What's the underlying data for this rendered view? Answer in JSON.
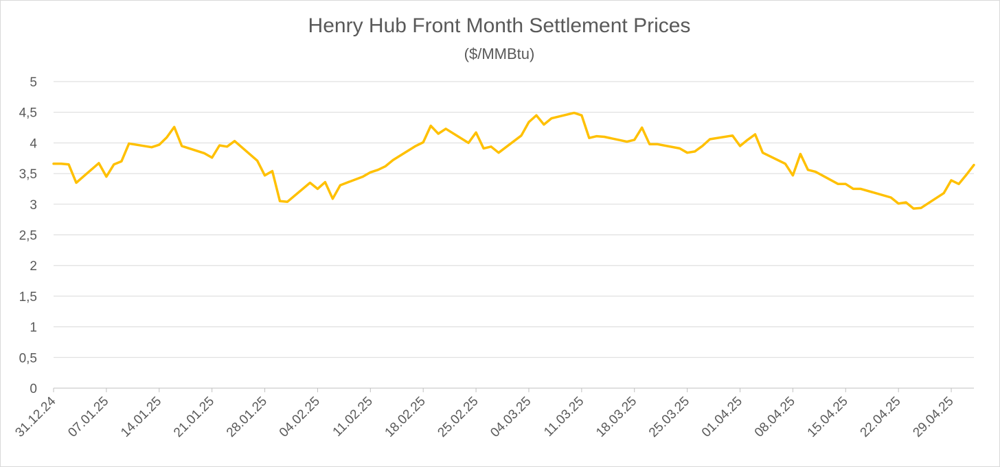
{
  "chart_data": {
    "type": "line",
    "title": "Henry Hub Front Month Settlement Prices",
    "subtitle": "($/MMBtu)",
    "xlabel": "",
    "ylabel": "",
    "ylim": [
      0,
      5
    ],
    "y_ticks": [
      "0",
      "0,5",
      "1",
      "1,5",
      "2",
      "2,5",
      "3",
      "3,5",
      "4",
      "4,5",
      "5"
    ],
    "x_range": [
      "2024-12-31",
      "2025-05-02"
    ],
    "x_ticks": [
      {
        "date": "2024-12-31",
        "label": "31.12.24"
      },
      {
        "date": "2025-01-07",
        "label": "07.01.25"
      },
      {
        "date": "2025-01-14",
        "label": "14.01.25"
      },
      {
        "date": "2025-01-21",
        "label": "21.01.25"
      },
      {
        "date": "2025-01-28",
        "label": "28.01.25"
      },
      {
        "date": "2025-02-04",
        "label": "04.02.25"
      },
      {
        "date": "2025-02-11",
        "label": "11.02.25"
      },
      {
        "date": "2025-02-18",
        "label": "18.02.25"
      },
      {
        "date": "2025-02-25",
        "label": "25.02.25"
      },
      {
        "date": "2025-03-04",
        "label": "04.03.25"
      },
      {
        "date": "2025-03-11",
        "label": "11.03.25"
      },
      {
        "date": "2025-03-18",
        "label": "18.03.25"
      },
      {
        "date": "2025-03-25",
        "label": "25.03.25"
      },
      {
        "date": "2025-04-01",
        "label": "01.04.25"
      },
      {
        "date": "2025-04-08",
        "label": "08.04.25"
      },
      {
        "date": "2025-04-15",
        "label": "15.04.25"
      },
      {
        "date": "2025-04-22",
        "label": "22.04.25"
      },
      {
        "date": "2025-04-29",
        "label": "29.04.25"
      }
    ],
    "grid": true,
    "legend": "none",
    "series": [
      {
        "name": "",
        "color": "#FFC000",
        "points": [
          [
            "2024-12-31",
            3.66
          ],
          [
            "2025-01-01",
            3.66
          ],
          [
            "2025-01-02",
            3.65
          ],
          [
            "2025-01-03",
            3.35
          ],
          [
            "2025-01-06",
            3.67
          ],
          [
            "2025-01-07",
            3.45
          ],
          [
            "2025-01-08",
            3.65
          ],
          [
            "2025-01-09",
            3.7
          ],
          [
            "2025-01-10",
            3.99
          ],
          [
            "2025-01-13",
            3.93
          ],
          [
            "2025-01-14",
            3.97
          ],
          [
            "2025-01-15",
            4.09
          ],
          [
            "2025-01-16",
            4.26
          ],
          [
            "2025-01-17",
            3.95
          ],
          [
            "2025-01-20",
            3.83
          ],
          [
            "2025-01-21",
            3.76
          ],
          [
            "2025-01-22",
            3.96
          ],
          [
            "2025-01-23",
            3.94
          ],
          [
            "2025-01-24",
            4.03
          ],
          [
            "2025-01-27",
            3.71
          ],
          [
            "2025-01-28",
            3.47
          ],
          [
            "2025-01-29",
            3.54
          ],
          [
            "2025-01-30",
            3.05
          ],
          [
            "2025-01-31",
            3.04
          ],
          [
            "2025-02-03",
            3.35
          ],
          [
            "2025-02-04",
            3.25
          ],
          [
            "2025-02-05",
            3.36
          ],
          [
            "2025-02-06",
            3.09
          ],
          [
            "2025-02-07",
            3.31
          ],
          [
            "2025-02-10",
            3.45
          ],
          [
            "2025-02-11",
            3.52
          ],
          [
            "2025-02-12",
            3.56
          ],
          [
            "2025-02-13",
            3.62
          ],
          [
            "2025-02-14",
            3.72
          ],
          [
            "2025-02-17",
            3.95
          ],
          [
            "2025-02-18",
            4.01
          ],
          [
            "2025-02-19",
            4.28
          ],
          [
            "2025-02-20",
            4.15
          ],
          [
            "2025-02-21",
            4.23
          ],
          [
            "2025-02-24",
            4.0
          ],
          [
            "2025-02-25",
            4.17
          ],
          [
            "2025-02-26",
            3.91
          ],
          [
            "2025-02-27",
            3.94
          ],
          [
            "2025-02-28",
            3.84
          ],
          [
            "2025-03-03",
            4.12
          ],
          [
            "2025-03-04",
            4.34
          ],
          [
            "2025-03-05",
            4.45
          ],
          [
            "2025-03-06",
            4.3
          ],
          [
            "2025-03-07",
            4.4
          ],
          [
            "2025-03-10",
            4.49
          ],
          [
            "2025-03-11",
            4.45
          ],
          [
            "2025-03-12",
            4.08
          ],
          [
            "2025-03-13",
            4.11
          ],
          [
            "2025-03-14",
            4.1
          ],
          [
            "2025-03-17",
            4.02
          ],
          [
            "2025-03-18",
            4.05
          ],
          [
            "2025-03-19",
            4.25
          ],
          [
            "2025-03-20",
            3.98
          ],
          [
            "2025-03-21",
            3.98
          ],
          [
            "2025-03-24",
            3.91
          ],
          [
            "2025-03-25",
            3.84
          ],
          [
            "2025-03-26",
            3.86
          ],
          [
            "2025-03-27",
            3.95
          ],
          [
            "2025-03-28",
            4.06
          ],
          [
            "2025-03-31",
            4.12
          ],
          [
            "2025-04-01",
            3.95
          ],
          [
            "2025-04-02",
            4.05
          ],
          [
            "2025-04-03",
            4.14
          ],
          [
            "2025-04-04",
            3.84
          ],
          [
            "2025-04-07",
            3.66
          ],
          [
            "2025-04-08",
            3.47
          ],
          [
            "2025-04-09",
            3.82
          ],
          [
            "2025-04-10",
            3.56
          ],
          [
            "2025-04-11",
            3.53
          ],
          [
            "2025-04-14",
            3.33
          ],
          [
            "2025-04-15",
            3.33
          ],
          [
            "2025-04-16",
            3.25
          ],
          [
            "2025-04-17",
            3.25
          ],
          [
            "2025-04-21",
            3.11
          ],
          [
            "2025-04-22",
            3.01
          ],
          [
            "2025-04-23",
            3.03
          ],
          [
            "2025-04-24",
            2.93
          ],
          [
            "2025-04-25",
            2.94
          ],
          [
            "2025-04-28",
            3.18
          ],
          [
            "2025-04-29",
            3.39
          ],
          [
            "2025-04-30",
            3.33
          ],
          [
            "2025-05-01",
            3.48
          ],
          [
            "2025-05-02",
            3.64
          ]
        ]
      }
    ]
  }
}
